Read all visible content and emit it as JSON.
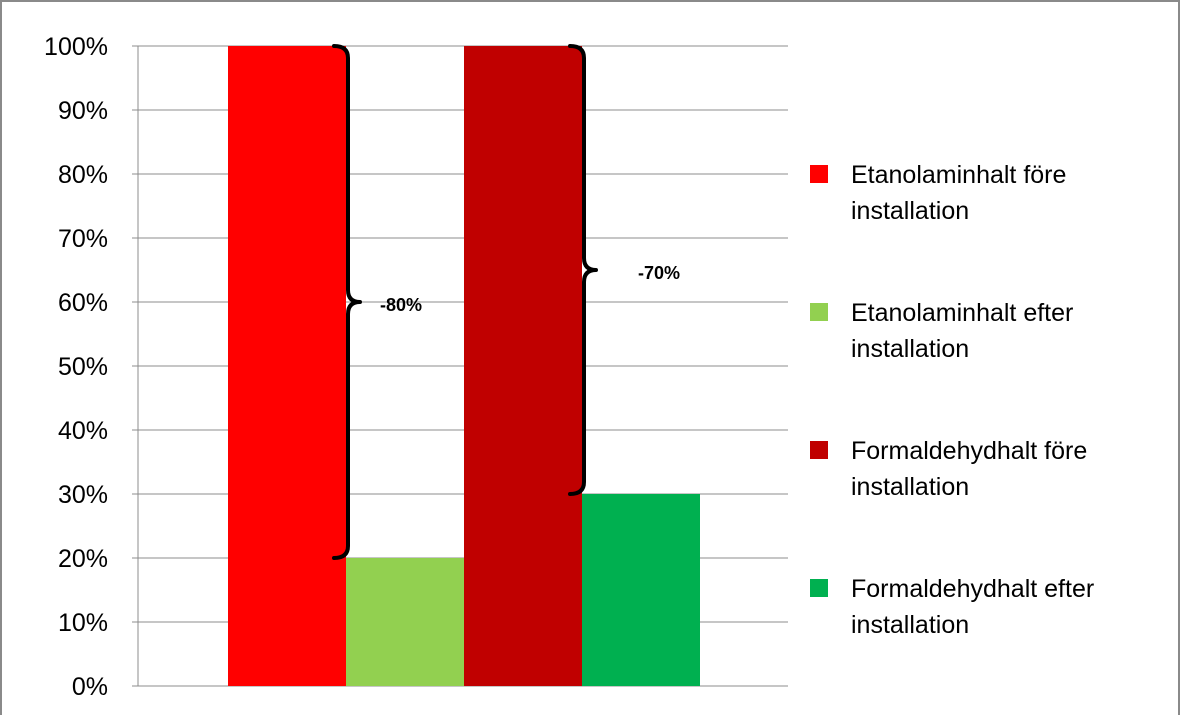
{
  "chart_data": {
    "type": "bar",
    "categories": [
      ""
    ],
    "series": [
      {
        "name": "Etanolaminhalt före installation",
        "values": [
          100
        ],
        "color": "#ff0000"
      },
      {
        "name": "Etanolaminhalt efter installation",
        "values": [
          20
        ],
        "color": "#92d050"
      },
      {
        "name": "Formaldehydhalt före installation",
        "values": [
          100
        ],
        "color": "#c00000"
      },
      {
        "name": "Formaldehydhalt efter installation",
        "values": [
          30
        ],
        "color": "#00b050"
      }
    ],
    "ylim": [
      0,
      100
    ],
    "yticks": [
      "0%",
      "10%",
      "20%",
      "30%",
      "40%",
      "50%",
      "60%",
      "70%",
      "80%",
      "90%",
      "100%"
    ],
    "grid": true,
    "legend": "right",
    "legend_lines": [
      [
        "Etanolaminhalt före",
        "installation"
      ],
      [
        "Etanolaminhalt efter",
        "installation"
      ],
      [
        "Formaldehydhalt före",
        "installation"
      ],
      [
        "Formaldehydhalt efter",
        "installation"
      ]
    ],
    "annotations": [
      {
        "text": "-80%",
        "from_series": 0,
        "to_series": 1,
        "from_value": 100,
        "to_value": 20
      },
      {
        "text": "-70%",
        "from_series": 2,
        "to_series": 3,
        "from_value": 100,
        "to_value": 30
      }
    ]
  }
}
